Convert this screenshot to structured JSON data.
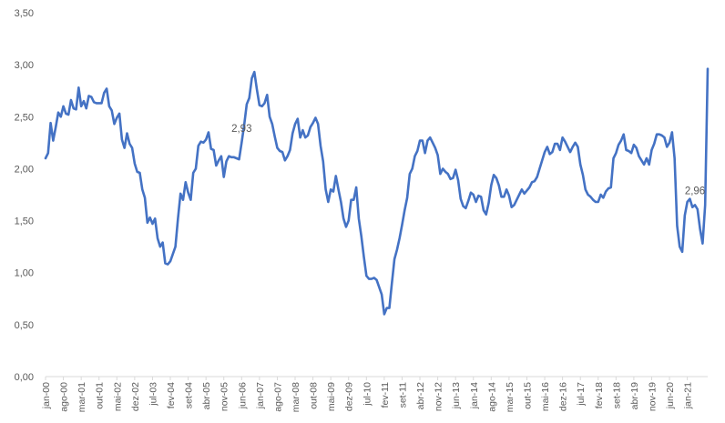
{
  "chart_data": {
    "type": "line",
    "title": "",
    "xlabel": "",
    "ylabel": "",
    "ylim": [
      0,
      3.5
    ],
    "y_ticks": [
      "0,00",
      "0,50",
      "1,00",
      "1,50",
      "2,00",
      "2,50",
      "3,00",
      "3,50"
    ],
    "x_tick_labels": [
      "jan-00",
      "ago-00",
      "mar-01",
      "out-01",
      "mai-02",
      "dez-02",
      "jul-03",
      "fev-04",
      "set-04",
      "abr-05",
      "nov-05",
      "jun-06",
      "jan-07",
      "ago-07",
      "mar-08",
      "out-08",
      "mai-09",
      "dez-09",
      "jul-10",
      "fev-11",
      "set-11",
      "abr-12",
      "nov-12",
      "jun-13",
      "jan-14",
      "ago-14",
      "mar-15",
      "out-15",
      "mai-16",
      "dez-16",
      "jul-17",
      "fev-18",
      "set-18",
      "abr-19",
      "nov-19",
      "jun-20",
      "jan-21"
    ],
    "grid": false,
    "legend": "none",
    "line_color": "#4472C4",
    "data_labels": [
      {
        "x": "jun-06",
        "text": "2,93"
      },
      {
        "x": "abr-21",
        "text": "2,96"
      }
    ],
    "series": [
      {
        "values": [
          2.1,
          2.15,
          2.44,
          2.27,
          2.4,
          2.54,
          2.5,
          2.6,
          2.53,
          2.52,
          2.66,
          2.58,
          2.57,
          2.78,
          2.6,
          2.65,
          2.58,
          2.7,
          2.69,
          2.64,
          2.63,
          2.63,
          2.63,
          2.73,
          2.77,
          2.6,
          2.56,
          2.43,
          2.49,
          2.53,
          2.28,
          2.2,
          2.34,
          2.24,
          2.2,
          2.05,
          1.97,
          1.96,
          1.8,
          1.72,
          1.48,
          1.53,
          1.47,
          1.52,
          1.33,
          1.25,
          1.29,
          1.09,
          1.08,
          1.11,
          1.18,
          1.25,
          1.52,
          1.76,
          1.7,
          1.87,
          1.77,
          1.7,
          1.96,
          2.0,
          2.22,
          2.26,
          2.25,
          2.28,
          2.35,
          2.19,
          2.18,
          2.03,
          2.08,
          2.12,
          1.92,
          2.07,
          2.12,
          2.11,
          2.11,
          2.1,
          2.09,
          2.25,
          2.42,
          2.62,
          2.68,
          2.87,
          2.93,
          2.76,
          2.61,
          2.6,
          2.63,
          2.71,
          2.5,
          2.43,
          2.31,
          2.2,
          2.17,
          2.16,
          2.08,
          2.12,
          2.18,
          2.34,
          2.43,
          2.48,
          2.3,
          2.37,
          2.3,
          2.32,
          2.4,
          2.44,
          2.49,
          2.43,
          2.22,
          2.07,
          1.8,
          1.68,
          1.8,
          1.78,
          1.93,
          1.8,
          1.68,
          1.52,
          1.44,
          1.5,
          1.7,
          1.7,
          1.82,
          1.52,
          1.35,
          1.15,
          0.97,
          0.94,
          0.94,
          0.95,
          0.93,
          0.86,
          0.79,
          0.6,
          0.66,
          0.66,
          0.9,
          1.13,
          1.22,
          1.33,
          1.46,
          1.6,
          1.72,
          1.95,
          2.0,
          2.12,
          2.17,
          2.27,
          2.27,
          2.15,
          2.27,
          2.3,
          2.25,
          2.2,
          2.13,
          1.95,
          2.0,
          1.97,
          1.95,
          1.9,
          1.91,
          1.99,
          1.89,
          1.71,
          1.64,
          1.62,
          1.69,
          1.77,
          1.75,
          1.68,
          1.74,
          1.73,
          1.6,
          1.56,
          1.67,
          1.84,
          1.94,
          1.91,
          1.84,
          1.73,
          1.73,
          1.8,
          1.74,
          1.63,
          1.65,
          1.7,
          1.75,
          1.8,
          1.76,
          1.79,
          1.82,
          1.87,
          1.88,
          1.92,
          2.0,
          2.08,
          2.16,
          2.21,
          2.14,
          2.16,
          2.24,
          2.24,
          2.18,
          2.3,
          2.26,
          2.21,
          2.16,
          2.21,
          2.25,
          2.21,
          2.04,
          1.94,
          1.8,
          1.75,
          1.73,
          1.7,
          1.68,
          1.68,
          1.75,
          1.72,
          1.78,
          1.81,
          1.82,
          2.1,
          2.15,
          2.23,
          2.27,
          2.33,
          2.18,
          2.17,
          2.15,
          2.23,
          2.2,
          2.12,
          2.08,
          2.04,
          2.1,
          2.04,
          2.18,
          2.24,
          2.33,
          2.33,
          2.32,
          2.3,
          2.21,
          2.25,
          2.35,
          2.1,
          1.45,
          1.25,
          1.2,
          1.55,
          1.68,
          1.71,
          1.63,
          1.65,
          1.61,
          1.42,
          1.28,
          1.65,
          2.96
        ]
      }
    ]
  }
}
